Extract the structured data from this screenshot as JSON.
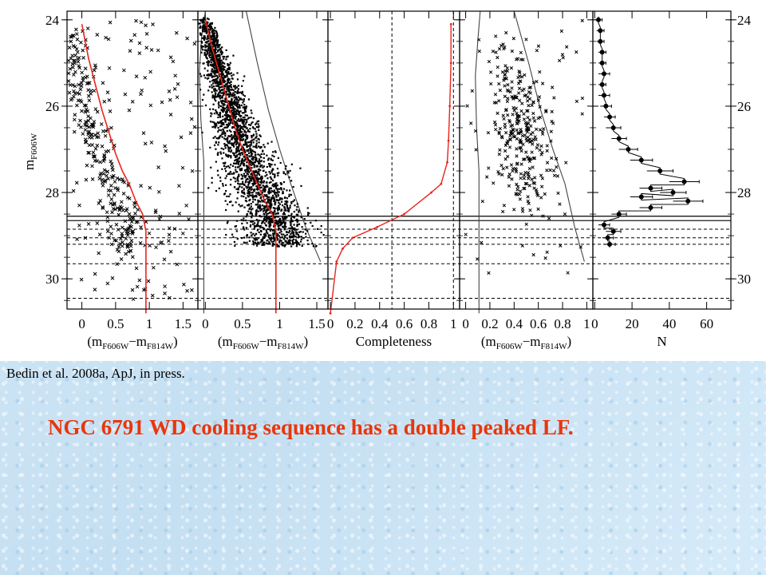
{
  "slide": {
    "citation": "Bedin et al. 2008a, ApJ, in press.",
    "caption": "NGC 6791 WD cooling sequence has a double peaked LF."
  },
  "colors": {
    "fit_line": "#e8251d",
    "points": "#000000",
    "caption": "#e8360c"
  },
  "chart_data": {
    "type": "scatter",
    "ylabel": {
      "main": "m",
      "sub": "F606W"
    },
    "ylim": [
      30.7,
      23.8
    ],
    "yticks": [
      24,
      26,
      28,
      30
    ],
    "horizontal_lines": {
      "solid": [
        28.55,
        28.65
      ],
      "dashed": [
        28.85,
        29.05,
        29.2,
        29.65,
        30.45
      ]
    },
    "panels": [
      {
        "id": "cmd-raw",
        "type": "scatter",
        "xlabel": {
          "main": "(m",
          "sub1": "F606W",
          "mid": "−m",
          "sub2": "F814W",
          "end": ")"
        },
        "xlim": [
          -0.22,
          1.72
        ],
        "xticks": [
          {
            "v": 0,
            "label": "0"
          },
          {
            "v": 0.5,
            "label": "0.5"
          },
          {
            "v": 1,
            "label": "1"
          },
          {
            "v": 1.5,
            "label": "1.5"
          }
        ],
        "fit_line": {
          "x": [
            0.0,
            0.1,
            0.2,
            0.3,
            0.4,
            0.5,
            0.6,
            0.7,
            0.8,
            0.9,
            0.95,
            0.95
          ],
          "y": [
            24.1,
            24.9,
            25.5,
            26.1,
            26.6,
            27.1,
            27.5,
            27.8,
            28.2,
            28.5,
            28.9,
            30.8
          ]
        }
      },
      {
        "id": "cmd-artificial-stars",
        "type": "scatter",
        "xlabel": {
          "main": "(m",
          "sub1": "F606W",
          "mid": "−m",
          "sub2": "F814W",
          "end": ")"
        },
        "xlim": [
          -0.1,
          1.65
        ],
        "xticks": [
          {
            "v": 0,
            "label": "0"
          },
          {
            "v": 0.5,
            "label": "0.5"
          },
          {
            "v": 1,
            "label": "1"
          },
          {
            "v": 1.5,
            "label": "1.5"
          }
        ],
        "fit_line": {
          "x": [
            0.0,
            0.1,
            0.2,
            0.3,
            0.4,
            0.5,
            0.6,
            0.7,
            0.8,
            0.9,
            0.95,
            0.95
          ],
          "y": [
            24.0,
            24.7,
            25.3,
            25.9,
            26.5,
            27.0,
            27.4,
            27.8,
            28.2,
            28.5,
            28.9,
            30.8
          ]
        },
        "envelope_left": {
          "x": [
            0.0,
            -0.05,
            -0.08,
            -0.06,
            -0.02,
            -0.02
          ],
          "y": [
            23.8,
            24.4,
            25.2,
            26.3,
            27.3,
            30.8
          ]
        },
        "envelope_right": {
          "x": [
            0.55,
            0.7,
            0.85,
            1.0,
            1.15,
            1.35,
            1.55
          ],
          "y": [
            23.8,
            25.0,
            26.1,
            27.0,
            27.8,
            28.8,
            29.6
          ]
        }
      },
      {
        "id": "completeness",
        "type": "line",
        "xlabel": {
          "main": "Completeness"
        },
        "xlim": [
          -0.02,
          1.05
        ],
        "xticks": [
          {
            "v": 0,
            "label": "0"
          },
          {
            "v": 0.2,
            "label": "0.2"
          },
          {
            "v": 0.4,
            "label": "0.4"
          },
          {
            "v": 0.6,
            "label": "0.6"
          },
          {
            "v": 0.8,
            "label": "0.8"
          },
          {
            "v": 1,
            "label": "1"
          }
        ],
        "vertical_dashed": [
          0.5,
          1.0
        ],
        "curve": {
          "x": [
            0.98,
            0.98,
            0.97,
            0.96,
            0.95,
            0.9,
            0.82,
            0.6,
            0.38,
            0.18,
            0.1,
            0.05,
            0.0
          ],
          "y": [
            24.1,
            25.0,
            26.0,
            26.8,
            27.3,
            27.8,
            28.0,
            28.5,
            28.8,
            29.05,
            29.3,
            29.6,
            30.8
          ]
        }
      },
      {
        "id": "cmd-selected",
        "type": "scatter",
        "xlabel": {
          "main": "(m",
          "sub1": "F606W",
          "mid": "−m",
          "sub2": "F814W",
          "end": ")"
        },
        "xlim": [
          -0.05,
          1.05
        ],
        "xticks": [
          {
            "v": 0.2,
            "label": "0.2"
          },
          {
            "v": 0.4,
            "label": "0.4"
          },
          {
            "v": 0.6,
            "label": "0.6"
          },
          {
            "v": 0.8,
            "label": "0.8"
          },
          {
            "v": 1,
            "label": "1"
          }
        ],
        "extra_tick_labels": [
          {
            "v": 0,
            "label": "0"
          }
        ],
        "envelope_left": {
          "x": [
            0.12,
            0.1,
            0.08,
            0.09,
            0.11,
            0.11
          ],
          "y": [
            23.8,
            24.5,
            25.3,
            26.5,
            27.5,
            30.8
          ]
        },
        "envelope_right": {
          "x": [
            0.4,
            0.52,
            0.62,
            0.72,
            0.82,
            0.9,
            0.98
          ],
          "y": [
            23.8,
            25.0,
            26.1,
            27.0,
            27.8,
            28.8,
            29.6
          ]
        }
      },
      {
        "id": "luminosity-function",
        "type": "line",
        "xlabel": {
          "main": "N"
        },
        "xlim": [
          -1,
          73
        ],
        "xticks": [
          {
            "v": 0,
            "label": "0"
          },
          {
            "v": 20,
            "label": "20"
          },
          {
            "v": 40,
            "label": "40"
          },
          {
            "v": 60,
            "label": "60"
          }
        ],
        "points": {
          "mag": [
            24.0,
            24.25,
            24.5,
            24.75,
            25.0,
            25.25,
            25.5,
            25.75,
            26.0,
            26.25,
            26.5,
            26.75,
            27.0,
            27.25,
            27.5,
            27.75,
            27.9,
            28.0,
            28.1,
            28.2,
            28.35,
            28.5,
            28.75,
            28.9,
            29.05,
            29.2
          ],
          "n": [
            2,
            3,
            3,
            4,
            4,
            5,
            4,
            5,
            6,
            8,
            10,
            13,
            18,
            25,
            35,
            48,
            30,
            42,
            25,
            50,
            30,
            13,
            5,
            10,
            7,
            8
          ],
          "err": [
            2,
            2,
            2,
            2,
            2,
            3,
            2,
            3,
            3,
            3,
            4,
            4,
            5,
            6,
            7,
            8,
            6,
            7,
            6,
            8,
            6,
            4,
            3,
            4,
            3,
            3
          ]
        }
      }
    ]
  }
}
